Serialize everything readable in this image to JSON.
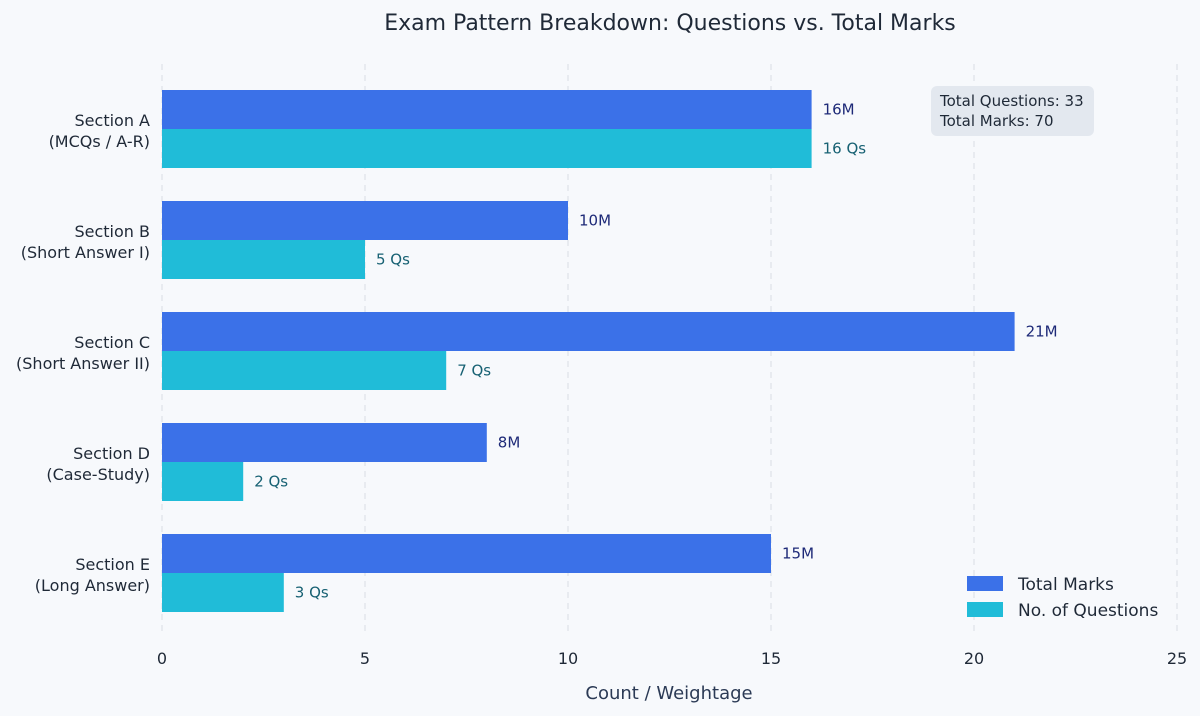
{
  "chart_data": {
    "type": "bar",
    "orientation": "horizontal",
    "title": "Exam Pattern Breakdown: Questions vs. Total Marks",
    "xlabel": "Count / Weightage",
    "ylabel": "",
    "xlim": [
      0,
      25
    ],
    "xticks": [
      "0",
      "5",
      "10",
      "15",
      "20",
      "25"
    ],
    "grid": "vertical-dashed",
    "legend_position": "bottom-right",
    "categories": [
      [
        "Section A",
        "(MCQs / A-R)"
      ],
      [
        "Section B",
        "(Short Answer I)"
      ],
      [
        "Section C",
        "(Short Answer II)"
      ],
      [
        "Section D",
        "(Case-Study)"
      ],
      [
        "Section E",
        "(Long Answer)"
      ]
    ],
    "series": [
      {
        "name": "Total Marks",
        "color": "#3b71e8",
        "values": [
          16,
          10,
          21,
          8,
          15
        ],
        "labels": [
          "16M",
          "10M",
          "21M",
          "8M",
          "15M"
        ]
      },
      {
        "name": "No. of Questions",
        "color": "#20bcd8",
        "values": [
          16,
          5,
          7,
          2,
          3
        ],
        "labels": [
          "16 Qs",
          "5 Qs",
          "7 Qs",
          "2 Qs",
          "3 Qs"
        ]
      }
    ],
    "annotation": [
      "Total Questions: 33",
      "Total Marks: 70"
    ]
  }
}
